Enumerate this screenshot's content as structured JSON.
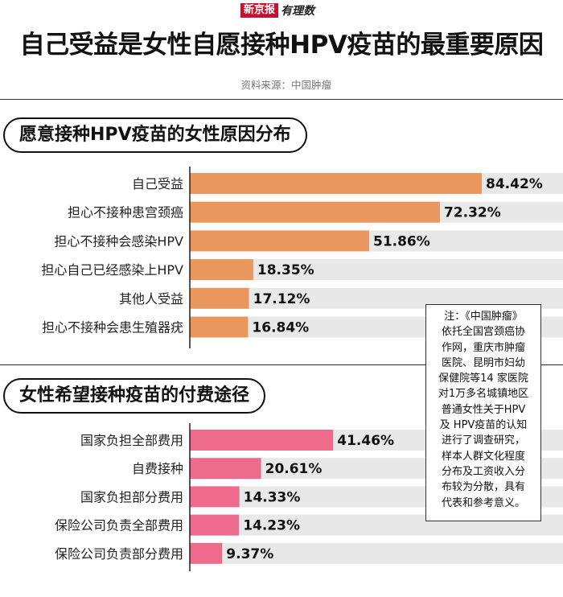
{
  "brand": {
    "logo": "新京报",
    "sub": "有理数"
  },
  "title": "自己受益是女性自愿接种HPV疫苗的最重要原因",
  "source": "资料来源：中国肿瘤",
  "colors": {
    "chart1": "#e9975c",
    "chart2": "#ef6b8e",
    "track": "#e8e8e8",
    "axis": "#222222"
  },
  "chart_data": [
    {
      "type": "bar",
      "orientation": "horizontal",
      "title": "愿意接种HPV疫苗的女性原因分布",
      "categories": [
        "自己受益",
        "担心不接种患宫颈癌",
        "担心不接种会感染HPV",
        "担心自己已经感染上HPV",
        "其他人受益",
        "担心不接种会患生殖器疣"
      ],
      "values": [
        84.42,
        72.32,
        51.86,
        18.35,
        17.12,
        16.84
      ],
      "value_labels": [
        "84.42%",
        "72.32%",
        "51.86%",
        "18.35%",
        "17.12%",
        "16.84%"
      ],
      "unit": "%",
      "xlim": [
        0,
        100
      ]
    },
    {
      "type": "bar",
      "orientation": "horizontal",
      "title": "女性希望接种疫苗的付费途径",
      "categories": [
        "国家负担全部费用",
        "自费接种",
        "国家负担部分费用",
        "保险公司负责全部费用",
        "保险公司负责部分费用"
      ],
      "values": [
        41.46,
        20.61,
        14.33,
        14.23,
        9.37
      ],
      "value_labels": [
        "41.46%",
        "20.61%",
        "14.33%",
        "14.23%",
        "9.37%"
      ],
      "unit": "%",
      "xlim": [
        0,
        100
      ]
    }
  ],
  "note": {
    "lines": [
      "注：《中国肿瘤》",
      "依托全国宫颈癌协",
      "作网，重庆市肿瘤",
      "医院、昆明市妇幼",
      "保健院等14 家医院",
      "对1万多名城镇地区",
      "普通女性关于HPV",
      "及 HPV疫苗的认知",
      "进行了调查研究，",
      "样本人群文化程度",
      "分布及工资收入分",
      "布较为分散，具有",
      "代表和参考意义。"
    ]
  }
}
